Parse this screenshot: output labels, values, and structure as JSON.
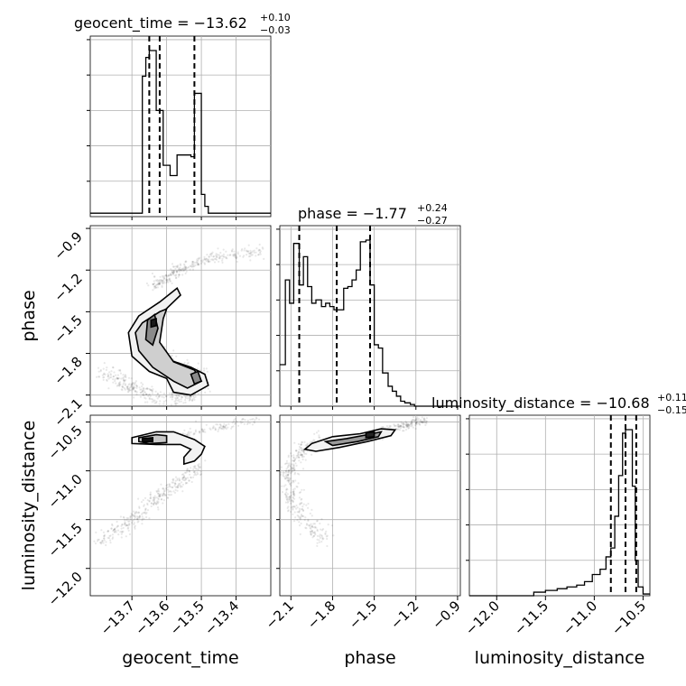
{
  "chart_data": {
    "type": "corner",
    "parameters": [
      "geocent_time",
      "phase",
      "luminosity_distance"
    ],
    "titles": [
      {
        "param": "geocent_time",
        "median": "−13.62",
        "plus": "+0.10",
        "minus": "−0.03"
      },
      {
        "param": "phase",
        "median": "−1.77",
        "plus": "+0.24",
        "minus": "−0.27"
      },
      {
        "param": "luminosity_distance",
        "median": "−10.68",
        "plus": "+0.11",
        "minus": "−0.15"
      }
    ],
    "axis_labels": [
      "geocent_time",
      "phase",
      "luminosity_distance"
    ],
    "ranges": {
      "geocent_time": [
        -13.82,
        -13.3
      ],
      "phase": [
        -2.18,
        -0.88
      ],
      "luminosity_distance": [
        -12.28,
        -10.43
      ]
    },
    "ticks": {
      "geocent_time": [
        "−13.7",
        "−13.6",
        "−13.5",
        "−13.4"
      ],
      "phase": [
        "−2.1",
        "−1.8",
        "−1.5",
        "−1.2",
        "−0.9"
      ],
      "luminosity_distance": [
        "−12.0",
        "−11.5",
        "−11.0",
        "−10.5"
      ]
    },
    "tick_values": {
      "geocent_time": [
        -13.7,
        -13.6,
        -13.5,
        -13.4
      ],
      "phase": [
        -2.1,
        -1.8,
        -1.5,
        -1.2,
        -0.9
      ],
      "luminosity_distance": [
        -12.0,
        -11.5,
        -11.0,
        -10.5
      ]
    },
    "quantile_lines": {
      "geocent_time": [
        -13.65,
        -13.62,
        -13.52
      ],
      "phase": [
        -2.04,
        -1.77,
        -1.53
      ],
      "luminosity_distance": [
        -10.83,
        -10.68,
        -10.57
      ]
    },
    "histograms": {
      "geocent_time": {
        "edges": [
          -13.82,
          -13.67,
          -13.66,
          -13.65,
          -13.64,
          -13.63,
          -13.62,
          -13.61,
          -13.6,
          -13.59,
          -13.58,
          -13.57,
          -13.56,
          -13.55,
          -13.54,
          -13.53,
          -13.52,
          -13.51,
          -13.5,
          -13.49,
          -13.48,
          -13.3
        ],
        "counts": [
          0.02,
          0.82,
          0.93,
          0.97,
          0.97,
          0.62,
          0.62,
          0.3,
          0.3,
          0.24,
          0.24,
          0.36,
          0.36,
          0.36,
          0.36,
          0.35,
          0.72,
          0.72,
          0.13,
          0.06,
          0.02
        ]
      },
      "phase": {
        "edges": [
          -2.18,
          -2.14,
          -2.11,
          -2.08,
          -2.04,
          -2.01,
          -1.98,
          -1.95,
          -1.92,
          -1.88,
          -1.85,
          -1.82,
          -1.79,
          -1.76,
          -1.72,
          -1.69,
          -1.66,
          -1.63,
          -1.6,
          -1.56,
          -1.53,
          -1.5,
          -1.47,
          -1.44,
          -1.4,
          -1.37,
          -1.34,
          -1.31,
          -1.28,
          -1.24,
          -1.21,
          -0.88
        ],
        "counts": [
          0.25,
          0.76,
          0.62,
          0.98,
          0.73,
          0.9,
          0.72,
          0.62,
          0.64,
          0.6,
          0.62,
          0.6,
          0.58,
          0.58,
          0.71,
          0.72,
          0.76,
          0.82,
          0.99,
          1.0,
          0.73,
          0.37,
          0.35,
          0.2,
          0.12,
          0.09,
          0.06,
          0.03,
          0.02,
          0.01,
          0.0
        ]
      },
      "luminosity_distance": {
        "edges": [
          -12.28,
          -11.62,
          -11.5,
          -11.38,
          -11.28,
          -11.18,
          -11.1,
          -11.02,
          -10.94,
          -10.88,
          -10.83,
          -10.79,
          -10.75,
          -10.71,
          -10.68,
          -10.65,
          -10.61,
          -10.58,
          -10.55,
          -10.5,
          -10.43
        ],
        "counts": [
          0.0,
          0.02,
          0.03,
          0.04,
          0.05,
          0.06,
          0.08,
          0.12,
          0.15,
          0.22,
          0.27,
          0.45,
          0.68,
          0.92,
          0.94,
          0.94,
          0.62,
          0.2,
          0.05,
          0.01
        ]
      }
    },
    "grid": true,
    "contour_levels": 4
  }
}
